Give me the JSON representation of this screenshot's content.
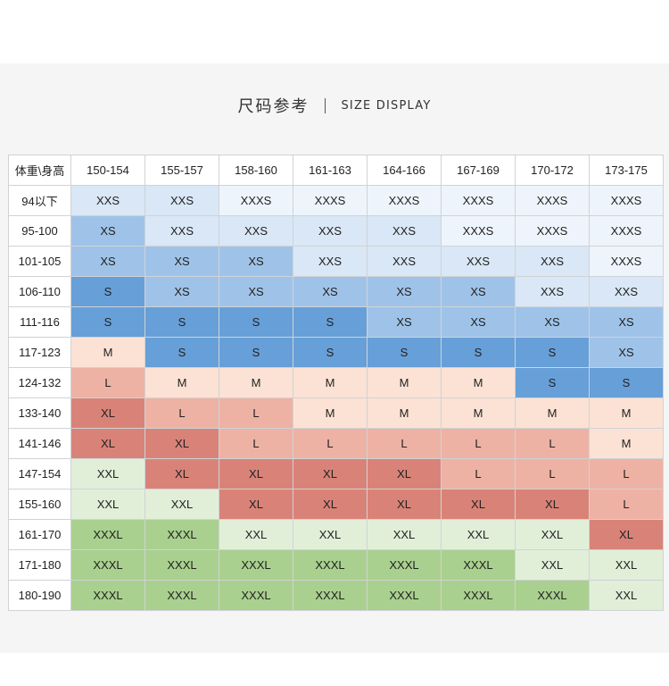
{
  "title": {
    "cn": "尺码参考",
    "en": "SIZE DISPLAY"
  },
  "table": {
    "corner": "体重\\身高",
    "height_columns": [
      "150-154",
      "155-157",
      "158-160",
      "161-163",
      "164-166",
      "167-169",
      "170-172",
      "173-175"
    ],
    "rows": [
      {
        "weight": "94以下",
        "sizes": [
          "XXS",
          "XXS",
          "XXXS",
          "XXXS",
          "XXXS",
          "XXXS",
          "XXXS",
          "XXXS"
        ]
      },
      {
        "weight": "95-100",
        "sizes": [
          "XS",
          "XXS",
          "XXS",
          "XXS",
          "XXS",
          "XXXS",
          "XXXS",
          "XXXS"
        ]
      },
      {
        "weight": "101-105",
        "sizes": [
          "XS",
          "XS",
          "XS",
          "XXS",
          "XXS",
          "XXS",
          "XXS",
          "XXXS"
        ]
      },
      {
        "weight": "106-110",
        "sizes": [
          "S",
          "XS",
          "XS",
          "XS",
          "XS",
          "XS",
          "XXS",
          "XXS"
        ]
      },
      {
        "weight": "111-116",
        "sizes": [
          "S",
          "S",
          "S",
          "S",
          "XS",
          "XS",
          "XS",
          "XS"
        ]
      },
      {
        "weight": "117-123",
        "sizes": [
          "M",
          "S",
          "S",
          "S",
          "S",
          "S",
          "S",
          "XS"
        ]
      },
      {
        "weight": "124-132",
        "sizes": [
          "L",
          "M",
          "M",
          "M",
          "M",
          "M",
          "S",
          "S"
        ]
      },
      {
        "weight": "133-140",
        "sizes": [
          "XL",
          "L",
          "L",
          "M",
          "M",
          "M",
          "M",
          "M"
        ]
      },
      {
        "weight": "141-146",
        "sizes": [
          "XL",
          "XL",
          "L",
          "L",
          "L",
          "L",
          "L",
          "M"
        ]
      },
      {
        "weight": "147-154",
        "sizes": [
          "XXL",
          "XL",
          "XL",
          "XL",
          "XL",
          "L",
          "L",
          "L"
        ]
      },
      {
        "weight": "155-160",
        "sizes": [
          "XXL",
          "XXL",
          "XL",
          "XL",
          "XL",
          "XL",
          "XL",
          "L"
        ]
      },
      {
        "weight": "161-170",
        "sizes": [
          "XXXL",
          "XXXL",
          "XXL",
          "XXL",
          "XXL",
          "XXL",
          "XXL",
          "XL"
        ]
      },
      {
        "weight": "171-180",
        "sizes": [
          "XXXL",
          "XXXL",
          "XXXL",
          "XXXL",
          "XXXL",
          "XXXL",
          "XXL",
          "XXL"
        ]
      },
      {
        "weight": "180-190",
        "sizes": [
          "XXXL",
          "XXXL",
          "XXXL",
          "XXXL",
          "XXXL",
          "XXXL",
          "XXXL",
          "XXL"
        ]
      }
    ]
  },
  "size_colors": {
    "XXXS": "#eef4fb",
    "XXS": "#d9e7f6",
    "XS": "#9fc3e8",
    "S": "#679fd8",
    "M": "#fbe2d4",
    "L": "#edb2a4",
    "XL": "#d98378",
    "XXL": "#e1efd9",
    "XXXL": "#a9d08e"
  }
}
